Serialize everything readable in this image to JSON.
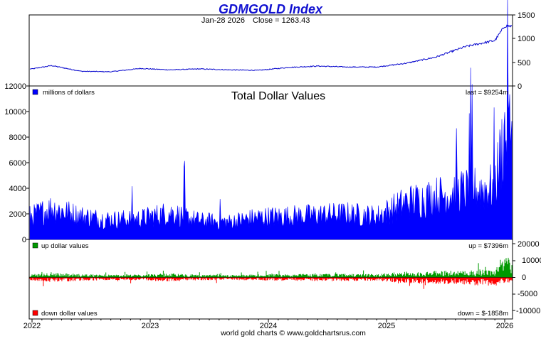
{
  "chart_data": [
    {
      "type": "line",
      "title": "GDMGOLD Index",
      "subtitle_date": "Jan-28  2026",
      "subtitle_close": "Close = 1263.43",
      "y_ticks_right": [
        "1500",
        "1000",
        "500",
        "0"
      ],
      "ylim": [
        0,
        1500
      ],
      "series": [
        {
          "x": [
            "2022-01",
            "2022-03",
            "2022-06",
            "2022-09",
            "2022-12",
            "2023-03",
            "2023-06",
            "2023-09",
            "2023-12",
            "2024-03",
            "2024-06",
            "2024-09",
            "2024-12",
            "2025-03",
            "2025-06",
            "2025-09",
            "2025-12",
            "2026-01"
          ],
          "values": [
            360,
            430,
            310,
            300,
            370,
            340,
            360,
            340,
            330,
            390,
            420,
            400,
            400,
            480,
            610,
            830,
            960,
            1263.43
          ]
        }
      ],
      "color": "#0000cc"
    },
    {
      "type": "area",
      "title": "Total Dollar Values",
      "legend": "millions of dollars",
      "last_label": "last = $9254m",
      "y_ticks_left": [
        "12000",
        "10000",
        "8000",
        "6000",
        "4000",
        "2000",
        "0"
      ],
      "ylim": [
        0,
        12000
      ],
      "series": [
        {
          "x": [
            "2022-01",
            "2022-03",
            "2022-06",
            "2022-09",
            "2022-12",
            "2023-03",
            "2023-06",
            "2023-09",
            "2023-12",
            "2024-03",
            "2024-06",
            "2024-09",
            "2024-12",
            "2025-03",
            "2025-06",
            "2025-09",
            "2025-12",
            "2026-01"
          ],
          "values": [
            2000,
            2700,
            2000,
            1700,
            1800,
            2300,
            1600,
            1500,
            1900,
            2000,
            2100,
            2200,
            2000,
            3200,
            3700,
            4200,
            4500,
            9254
          ]
        }
      ],
      "color": "#0000ff"
    },
    {
      "type": "bar",
      "legend_up": "up dollar values",
      "legend_down": "down dollar values",
      "up_label": "up = $7396m",
      "down_label": "down = $-1858m",
      "y_ticks_right": [
        "20000",
        "10000",
        "0",
        "-5000",
        "-10000"
      ],
      "ylim": [
        -10000,
        20000
      ],
      "series": [
        {
          "name": "up dollar values",
          "x": [
            "2022-01",
            "2022-03",
            "2022-06",
            "2022-09",
            "2022-12",
            "2023-03",
            "2023-06",
            "2023-09",
            "2023-12",
            "2024-03",
            "2024-06",
            "2024-09",
            "2024-12",
            "2025-03",
            "2025-06",
            "2025-09",
            "2025-12",
            "2026-01"
          ],
          "values": [
            1200,
            1700,
            1200,
            1000,
            1100,
            1400,
            1000,
            900,
            1100,
            1200,
            1300,
            1300,
            1200,
            2000,
            2300,
            2600,
            2900,
            7396
          ]
        },
        {
          "name": "down dollar values",
          "x": [
            "2022-01",
            "2022-03",
            "2022-06",
            "2022-09",
            "2022-12",
            "2023-03",
            "2023-06",
            "2023-09",
            "2023-12",
            "2024-03",
            "2024-06",
            "2024-09",
            "2024-12",
            "2025-03",
            "2025-06",
            "2025-09",
            "2025-12",
            "2026-01"
          ],
          "values": [
            -1300,
            -1700,
            -1200,
            -1000,
            -1100,
            -1400,
            -1000,
            -900,
            -1100,
            -1200,
            -1300,
            -1300,
            -1200,
            -2000,
            -2300,
            -2600,
            -3100,
            -1858
          ]
        }
      ],
      "up_color": "#009900",
      "down_color": "#ff0000"
    }
  ],
  "x_axis": {
    "ticks": [
      "2022",
      "2023",
      "2024",
      "2025",
      "2026"
    ]
  },
  "footer": "world gold charts © www.goldchartsrus.com"
}
